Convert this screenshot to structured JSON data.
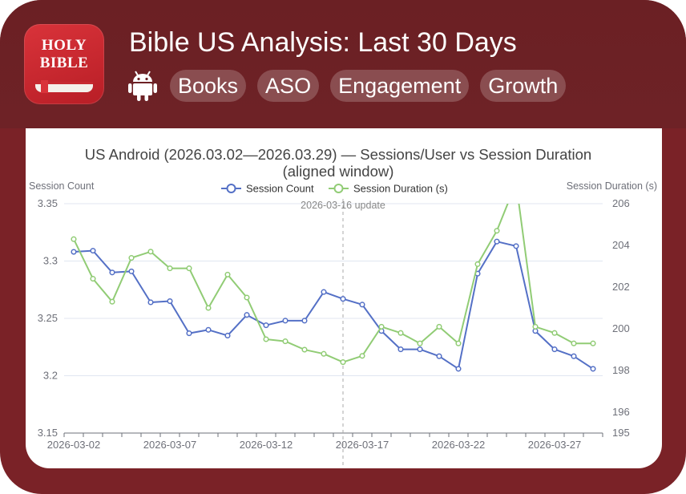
{
  "header": {
    "title": "Bible US Analysis: Last 30 Days",
    "app_icon_line1": "HOLY",
    "app_icon_line2": "BIBLE",
    "platform_icon": "android-icon",
    "tags": [
      "Books",
      "ASO",
      "Engagement",
      "Growth"
    ]
  },
  "colors": {
    "header_bg": "#6b2024",
    "frame_bg": "#7a2227",
    "series_sessions": "#5470c6",
    "series_duration": "#91cc75",
    "markline": "#aaaaaa"
  },
  "chart_data": {
    "type": "line",
    "title": "US Android (2026.03.02—2026.03.29) — Sessions/User vs Session Duration (aligned window)",
    "y_left_label": "Session Count",
    "y_right_label": "Session Duration (s)",
    "legend_placement": "top-center",
    "grid": true,
    "x": [
      "2026-03-02",
      "2026-03-03",
      "2026-03-04",
      "2026-03-05",
      "2026-03-06",
      "2026-03-07",
      "2026-03-08",
      "2026-03-09",
      "2026-03-10",
      "2026-03-11",
      "2026-03-12",
      "2026-03-13",
      "2026-03-14",
      "2026-03-15",
      "2026-03-16",
      "2026-03-17",
      "2026-03-18",
      "2026-03-19",
      "2026-03-20",
      "2026-03-21",
      "2026-03-22",
      "2026-03-23",
      "2026-03-24",
      "2026-03-25",
      "2026-03-26",
      "2026-03-27",
      "2026-03-28",
      "2026-03-29"
    ],
    "x_tick_labels": [
      "2026-03-02",
      "2026-03-07",
      "2026-03-12",
      "2026-03-17",
      "2026-03-22",
      "2026-03-27"
    ],
    "y_left": {
      "min": 3.15,
      "max": 3.35,
      "ticks": [
        "3.15",
        "3.2",
        "3.25",
        "3.3",
        "3.35"
      ]
    },
    "y_right": {
      "min": 195,
      "max": 206,
      "ticks": [
        "195",
        "196",
        "198",
        "200",
        "202",
        "204",
        "206"
      ]
    },
    "series": [
      {
        "name": "Session Count",
        "axis": "left",
        "values": [
          3.308,
          3.309,
          3.29,
          3.291,
          3.264,
          3.265,
          3.237,
          3.24,
          3.235,
          3.253,
          3.244,
          3.248,
          3.248,
          3.273,
          3.267,
          3.262,
          3.239,
          3.223,
          3.223,
          3.217,
          3.206,
          3.289,
          3.317,
          3.313,
          3.239,
          3.223,
          3.217,
          3.206
        ]
      },
      {
        "name": "Session Duration (s)",
        "axis": "right",
        "values": [
          204.3,
          202.4,
          201.3,
          203.4,
          203.7,
          202.9,
          202.9,
          201.0,
          202.6,
          201.5,
          199.5,
          199.4,
          199.0,
          198.8,
          198.4,
          198.7,
          200.1,
          199.8,
          199.3,
          200.1,
          199.3,
          203.1,
          204.7,
          207.0,
          200.1,
          199.8,
          199.3,
          199.3
        ]
      }
    ],
    "annotation": {
      "label": "2026-03-16 update",
      "x": "2026-03-16"
    }
  }
}
